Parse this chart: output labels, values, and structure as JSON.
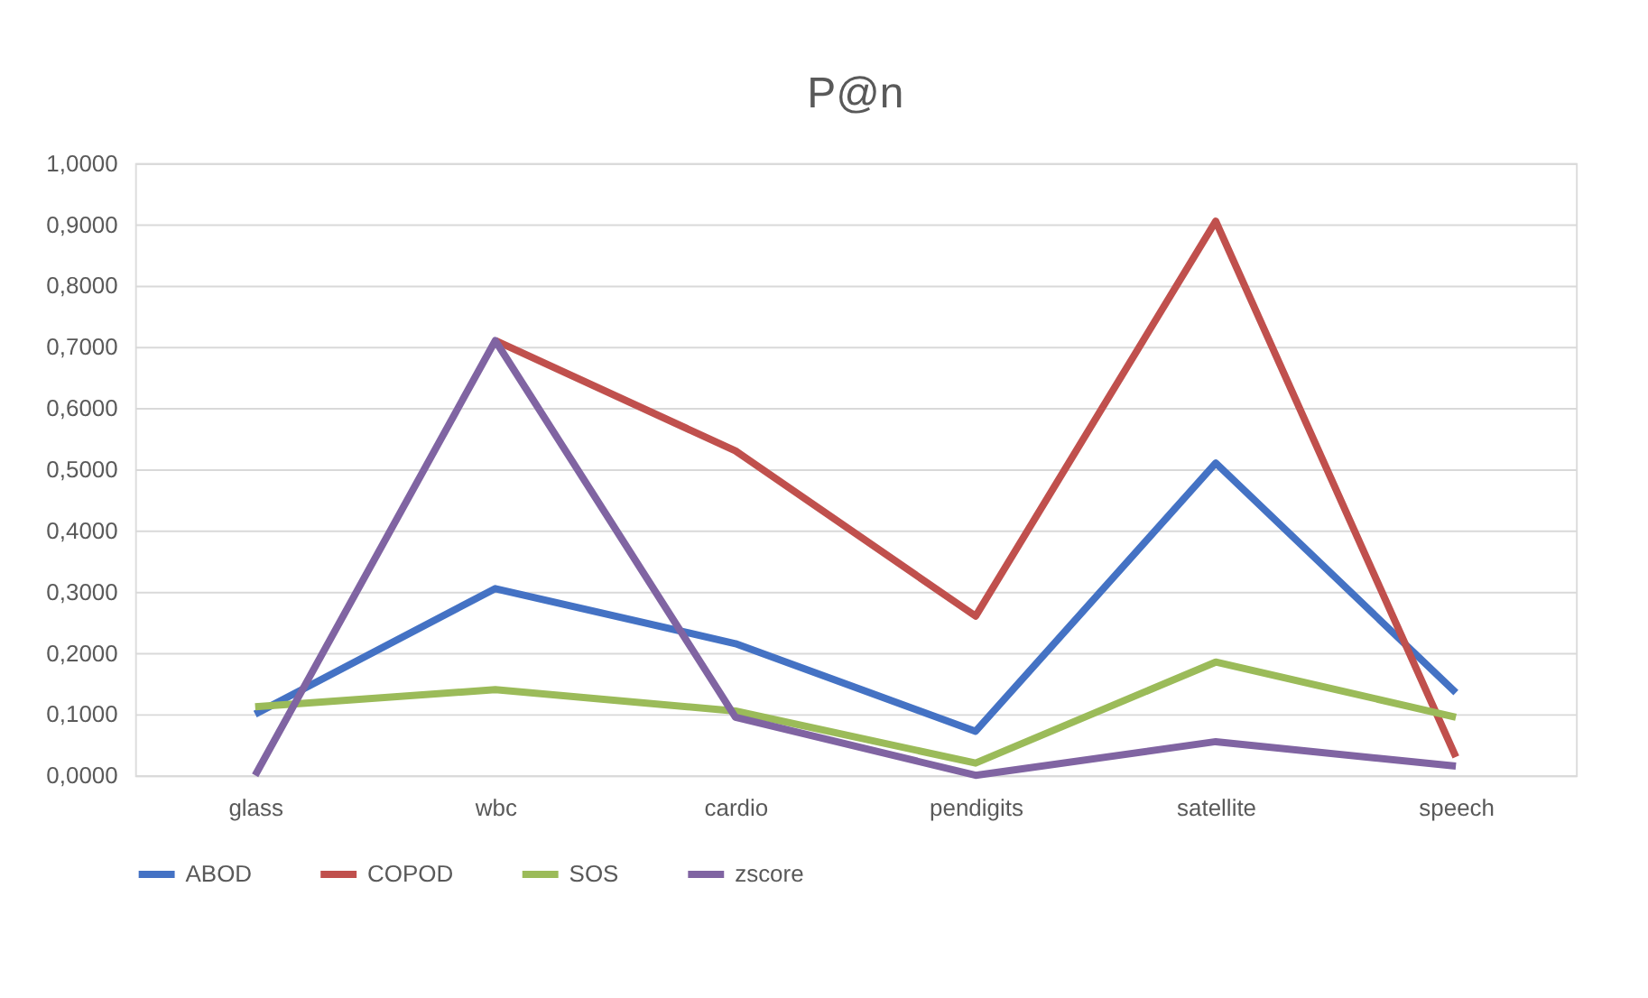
{
  "chart_data": {
    "type": "line",
    "title": "P@n",
    "categories": [
      "glass",
      "wbc",
      "cardio",
      "pendigits",
      "satellite",
      "speech"
    ],
    "series": [
      {
        "name": "ABOD",
        "color": "#4472c4",
        "values": [
          0.1,
          0.305,
          0.215,
          0.072,
          0.51,
          0.135
        ]
      },
      {
        "name": "COPOD",
        "color": "#c0504d",
        "values": [
          null,
          0.71,
          0.53,
          0.26,
          0.905,
          0.03
        ]
      },
      {
        "name": "SOS",
        "color": "#9bbb59",
        "values": [
          0.112,
          0.14,
          0.105,
          0.02,
          0.185,
          0.095
        ]
      },
      {
        "name": "zscore",
        "color": "#8064a2",
        "values": [
          0.0,
          0.71,
          0.095,
          0.0,
          0.055,
          0.015
        ]
      }
    ],
    "ylim": [
      0,
      1
    ],
    "yticks": [
      {
        "value": 0,
        "label": "0,0000"
      },
      {
        "value": 0.1,
        "label": "0,1000"
      },
      {
        "value": 0.2,
        "label": "0,2000"
      },
      {
        "value": 0.3,
        "label": "0,3000"
      },
      {
        "value": 0.4,
        "label": "0,4000"
      },
      {
        "value": 0.5,
        "label": "0,5000"
      },
      {
        "value": 0.6,
        "label": "0,6000"
      },
      {
        "value": 0.7,
        "label": "0,7000"
      },
      {
        "value": 0.8,
        "label": "0,8000"
      },
      {
        "value": 0.9,
        "label": "0,9000"
      },
      {
        "value": 1,
        "label": "1,0000"
      }
    ],
    "grid": "y",
    "legend": "bottom",
    "marker": "none",
    "line_style": "solid"
  }
}
